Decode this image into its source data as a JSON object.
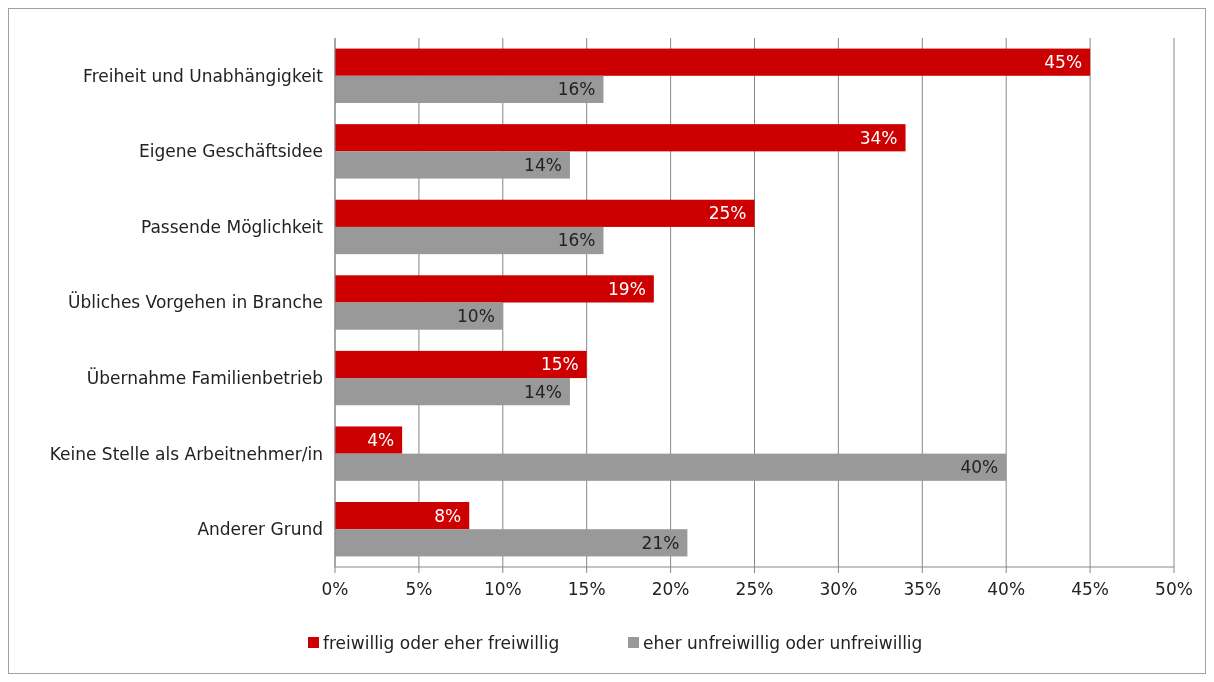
{
  "chart_data": {
    "type": "bar",
    "orientation": "horizontal",
    "categories": [
      "Freiheit und Unabhängigkeit",
      "Eigene Geschäftsidee",
      "Passende Möglichkeit",
      "Übliches Vorgehen in Branche",
      "Übernahme Familienbetrieb",
      "Keine Stelle als Arbeitnehmer/in",
      "Anderer Grund"
    ],
    "series": [
      {
        "name": "freiwillig oder eher freiwillig",
        "color": "#cc0000",
        "values": [
          45,
          34,
          25,
          19,
          15,
          4,
          8
        ],
        "value_labels": [
          "45%",
          "34%",
          "25%",
          "19%",
          "15%",
          "4%",
          "8%"
        ]
      },
      {
        "name": "eher unfreiwillig oder unfreiwillig",
        "color": "#999999",
        "values": [
          16,
          14,
          16,
          10,
          14,
          40,
          21
        ],
        "value_labels": [
          "16%",
          "14%",
          "16%",
          "10%",
          "14%",
          "40%",
          "21%"
        ]
      }
    ],
    "xlim": [
      0,
      50
    ],
    "xticks": [
      {
        "value": 0,
        "label": "0%"
      },
      {
        "value": 5,
        "label": "5%"
      },
      {
        "value": 10,
        "label": "10%"
      },
      {
        "value": 15,
        "label": "15%"
      },
      {
        "value": 20,
        "label": "20%"
      },
      {
        "value": 25,
        "label": "25%"
      },
      {
        "value": 30,
        "label": "30%"
      },
      {
        "value": 35,
        "label": "35%"
      },
      {
        "value": 40,
        "label": "40%"
      },
      {
        "value": 45,
        "label": "45%"
      },
      {
        "value": 50,
        "label": "50%"
      }
    ],
    "grid": "x",
    "legend": "bottom"
  }
}
